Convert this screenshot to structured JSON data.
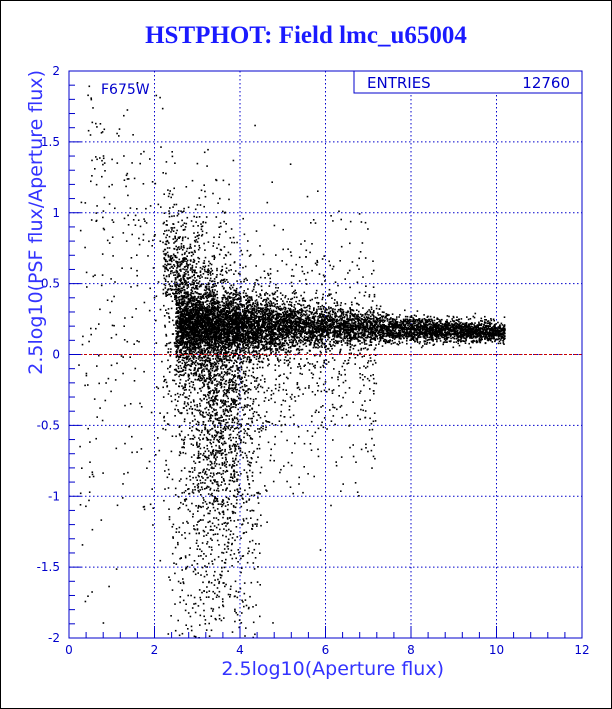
{
  "page": {
    "title": "HSTPHOT: Field lmc_u65004"
  },
  "colors": {
    "axis": "#0000cc",
    "grid": "#0000cc",
    "points": "#000000",
    "zero_line": "#cc0000",
    "title": "#1a1aff"
  },
  "chart_data": {
    "type": "scatter",
    "title": "HSTPHOT: Field lmc_u65004",
    "xlabel": "2.5log10(Aperture flux)",
    "ylabel": "2.5log10(PSF flux/Aperture flux)",
    "xlim": [
      0,
      12
    ],
    "ylim": [
      -2,
      2
    ],
    "x_ticks": [
      "0",
      "2",
      "4",
      "6",
      "8",
      "10",
      "12"
    ],
    "y_ticks": [
      "-2",
      "-1.5",
      "-1",
      "-0.5",
      "0",
      "0.5",
      "1",
      "1.5",
      "2"
    ],
    "grid": true,
    "filter_label": "F675W",
    "stats": {
      "label": "ENTRIES",
      "value": "12760"
    },
    "reference_line": {
      "y": 0,
      "style": "dashed"
    },
    "entries": 12760,
    "distribution": {
      "core": {
        "x_range": [
          2.5,
          10.2
        ],
        "y_center_at_x3": 0.2,
        "y_center_at_x10": 0.15
      },
      "faint_plume": {
        "x_range": [
          2.2,
          4.5
        ],
        "y_range": [
          -2,
          0.5
        ]
      },
      "bright_sparse": {
        "x_range": [
          0.2,
          2.2
        ],
        "y_range": [
          -1.8,
          2
        ]
      }
    }
  }
}
